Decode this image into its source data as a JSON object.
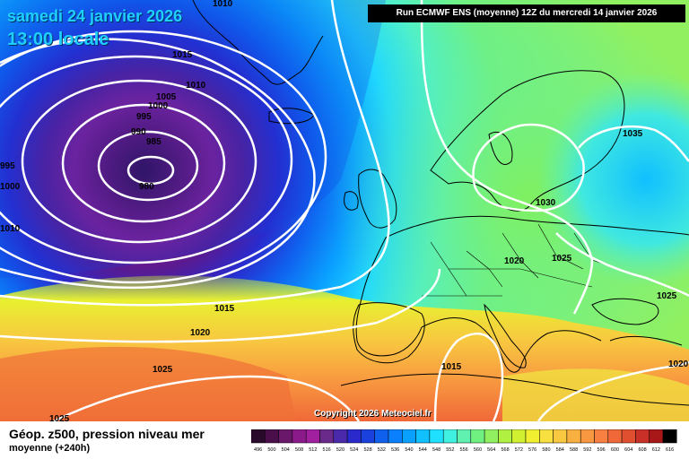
{
  "header": {
    "date_line": "samedi 24 janvier 2026",
    "time_line": "13:00 locale",
    "run_info": "Run ECMWF ENS (moyenne) 12Z du mercredi 14 janvier 2026",
    "copyright": "Copyright 2026 Meteociel.fr"
  },
  "footer": {
    "title": "Géop. z500, pression niveau mer",
    "subtitle": "moyenne  (+240h)"
  },
  "isobar_labels": [
    "1010",
    "1015",
    "1010",
    "1005",
    "1000",
    "995",
    "990",
    "985",
    "980",
    "995",
    "1000",
    "1010",
    "1015",
    "1020",
    "1025",
    "1025",
    "1015",
    "1020",
    "1025",
    "1030",
    "1035",
    "1025",
    "1020"
  ],
  "legend": {
    "ticks": [
      "496",
      "500",
      "504",
      "508",
      "512",
      "516",
      "520",
      "524",
      "528",
      "532",
      "536",
      "540",
      "544",
      "548",
      "552",
      "556",
      "560",
      "564",
      "568",
      "572",
      "576",
      "580",
      "584",
      "588",
      "592",
      "596",
      "600",
      "604",
      "608",
      "612",
      "616"
    ],
    "colors": [
      "#2a0a2a",
      "#4a0f4a",
      "#6a186a",
      "#8a1a8a",
      "#a020a0",
      "#6a2a8a",
      "#4a2aaa",
      "#2a2acc",
      "#1a40dd",
      "#1060ee",
      "#0a80ff",
      "#0aa0ff",
      "#10c0ff",
      "#20e0ff",
      "#40f0e0",
      "#60f0b0",
      "#70f080",
      "#90f060",
      "#b0f040",
      "#d0f030",
      "#f0f030",
      "#f8e040",
      "#f8c840",
      "#f8b040",
      "#f89840",
      "#f88040",
      "#f06838",
      "#e05030",
      "#c83028",
      "#a81818",
      "#000000"
    ]
  }
}
